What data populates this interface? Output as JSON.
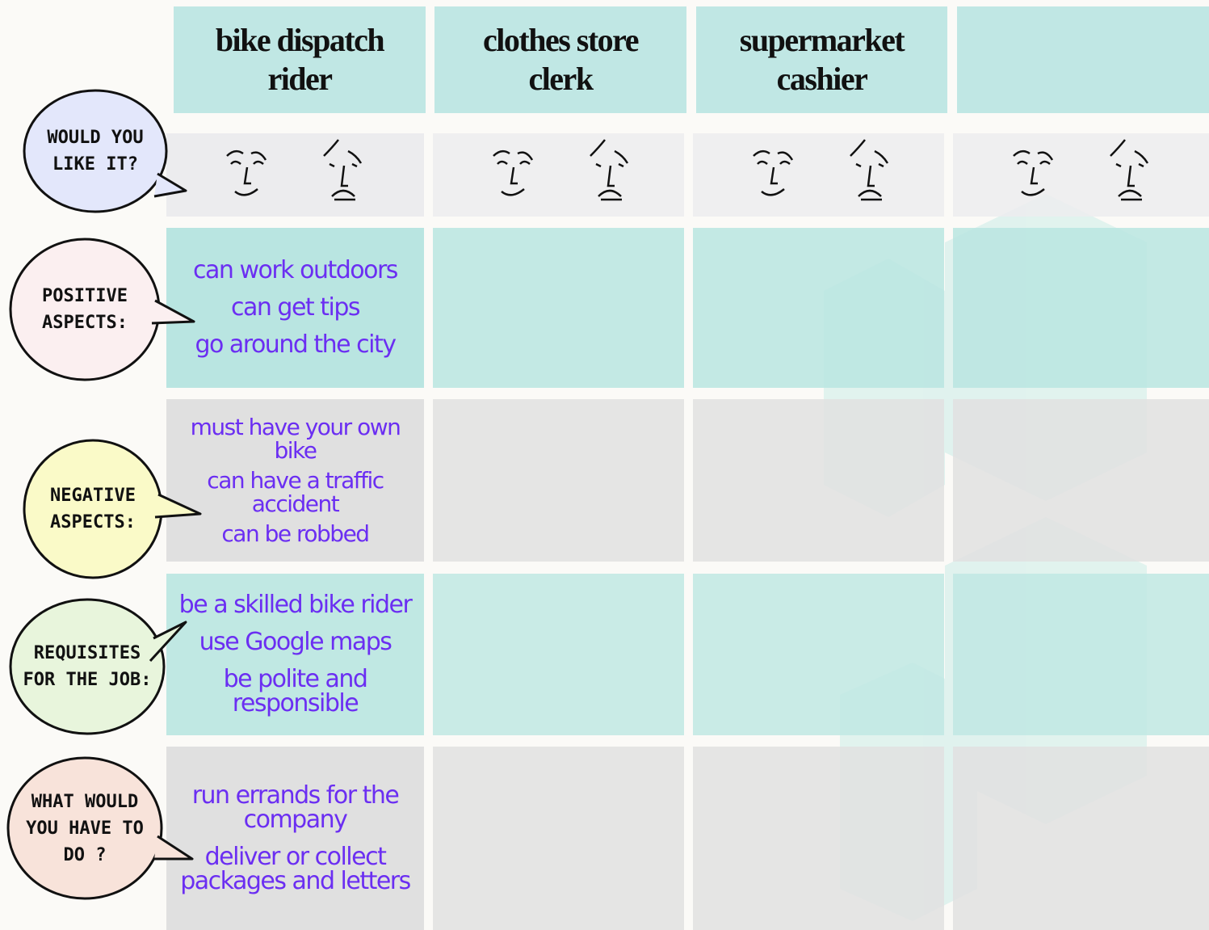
{
  "columns": {
    "headers": [
      "bike dispatch rider",
      "clothes store clerk",
      "supermarket cashier"
    ]
  },
  "rows": {
    "labels": [
      "WOULD YOU LIKE IT?",
      "POSITIVE ASPECTS:",
      "NEGATIVE ASPECTS:",
      "REQUISITES FOR THE JOB:",
      "WHAT WOULD YOU HAVE TO DO ?"
    ]
  },
  "cells": {
    "positive": [
      "can work outdoors",
      "can get tips",
      "go around the city"
    ],
    "negative": [
      "must have your own bike",
      "can have a traffic accident",
      "can be robbed"
    ],
    "requisites": [
      "be a skilled bike rider",
      "use Google maps",
      "be polite and responsible"
    ],
    "duties": [
      "run errands for the company",
      "deliver or collect packages and letters"
    ]
  }
}
